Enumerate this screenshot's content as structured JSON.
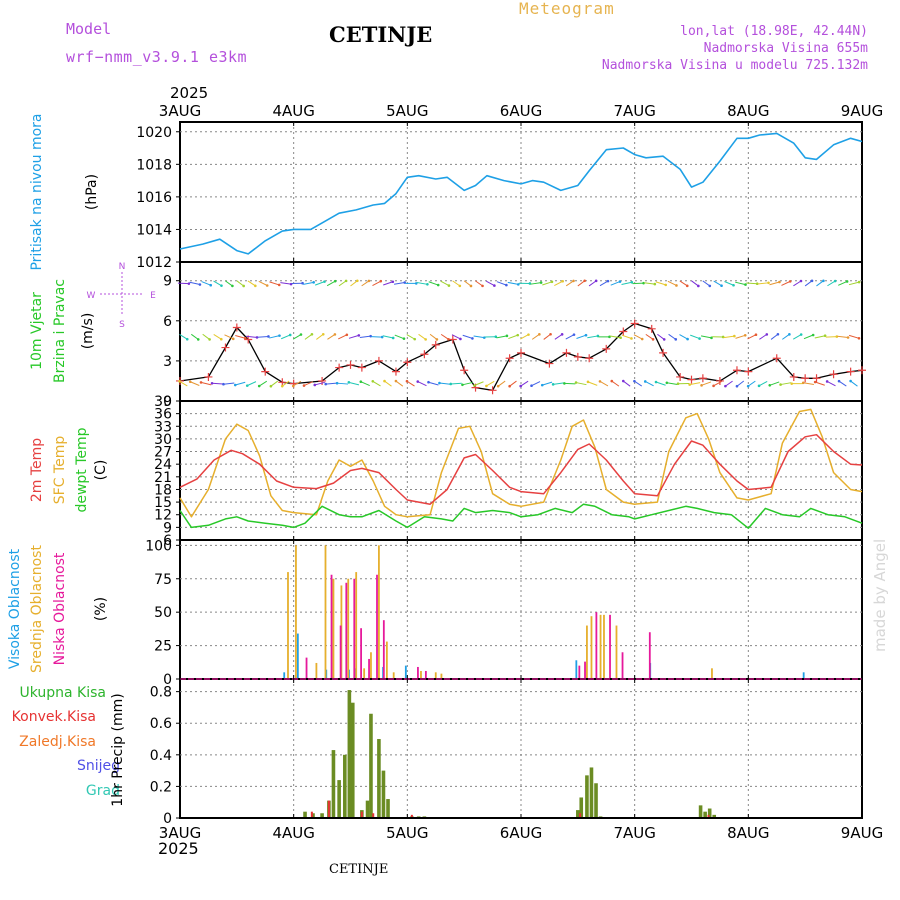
{
  "header": {
    "model_label": "Model",
    "model_name": "wrf−nmm_v3.9.1  e3km",
    "station": "CETINJE",
    "meteogram": "Meteogram",
    "coords": "lon,lat (18.98E, 42.44N)",
    "altitude": "Nadmorska Visina 655m",
    "model_altitude": "Nadmorska Visina u modelu 725.132m",
    "year_top": "2025",
    "year_bottom": "2025",
    "footer_station": "CETINJE",
    "watermark": "made by Angel"
  },
  "colors": {
    "pressure": "#1ea0e6",
    "temp2m": "#e64141",
    "sfc_temp": "#e6af2d",
    "dewpt": "#28c828",
    "high_cloud": "#1ea0e6",
    "mid_cloud": "#e6af2d",
    "low_cloud": "#e6199b",
    "total_rain": "#2db42d",
    "conv_rain": "#e63232",
    "freezing_rain": "#f07828",
    "snow": "#5050e6",
    "hail": "#32c8b4",
    "precip_bar": "#6b8c23",
    "model_text": "#b450dc",
    "meteogram_text": "#e6b450"
  },
  "chart_data": [
    {
      "type": "line",
      "id": "pressure",
      "title": "Pritisak na nivou mora",
      "ylabel": "(hPa)",
      "ylim": [
        1012,
        1020.6
      ],
      "yticks": [
        1012,
        1014,
        1016,
        1018,
        1020
      ],
      "xlim": [
        0,
        6
      ],
      "x_tick_labels": [
        "3AUG",
        "4AUG",
        "5AUG",
        "6AUG",
        "7AUG",
        "8AUG",
        "9AUG"
      ],
      "series": [
        {
          "name": "Pritisak na nivou mora",
          "x": [
            0,
            0.2,
            0.35,
            0.5,
            0.6,
            0.75,
            0.9,
            1.0,
            1.15,
            1.25,
            1.4,
            1.55,
            1.7,
            1.8,
            1.9,
            2.0,
            2.1,
            2.25,
            2.35,
            2.5,
            2.6,
            2.7,
            2.85,
            3.0,
            3.1,
            3.2,
            3.35,
            3.5,
            3.6,
            3.75,
            3.9,
            4.0,
            4.1,
            4.25,
            4.4,
            4.5,
            4.6,
            4.75,
            4.9,
            5.0,
            5.1,
            5.25,
            5.4,
            5.5,
            5.6,
            5.75,
            5.9,
            6.0
          ],
          "values": [
            1012.8,
            1013.1,
            1013.4,
            1012.7,
            1012.5,
            1013.3,
            1013.9,
            1014.0,
            1014.0,
            1014.4,
            1015.0,
            1015.2,
            1015.5,
            1015.6,
            1016.2,
            1017.2,
            1017.3,
            1017.1,
            1017.2,
            1016.4,
            1016.7,
            1017.3,
            1017.0,
            1016.8,
            1017.0,
            1016.9,
            1016.4,
            1016.7,
            1017.6,
            1018.9,
            1019.0,
            1018.6,
            1018.4,
            1018.5,
            1017.7,
            1016.6,
            1016.9,
            1018.2,
            1019.6,
            1019.6,
            1019.8,
            1019.9,
            1019.3,
            1018.4,
            1018.3,
            1019.2,
            1019.6,
            1019.4
          ]
        }
      ]
    },
    {
      "type": "line",
      "id": "wind",
      "title": "10m Vjetar Brzina i Pravac",
      "ylabel": "(m/s)",
      "ylim": [
        0,
        10.4
      ],
      "yticks": [
        0,
        3,
        6,
        9
      ],
      "compass": [
        "N",
        "W",
        "E",
        "S"
      ],
      "series": [
        {
          "name": "Brzina vjetra",
          "x": [
            0,
            0.25,
            0.4,
            0.5,
            0.6,
            0.75,
            0.9,
            1.0,
            1.25,
            1.4,
            1.5,
            1.6,
            1.75,
            1.9,
            2.0,
            2.15,
            2.25,
            2.4,
            2.5,
            2.6,
            2.75,
            2.9,
            3.0,
            3.25,
            3.4,
            3.5,
            3.6,
            3.75,
            3.9,
            4.0,
            4.15,
            4.25,
            4.4,
            4.5,
            4.6,
            4.75,
            4.9,
            5.0,
            5.25,
            5.4,
            5.5,
            5.6,
            5.75,
            5.9,
            6.0
          ],
          "values": [
            1.5,
            1.8,
            4.0,
            5.5,
            4.6,
            2.2,
            1.4,
            1.3,
            1.5,
            2.5,
            2.7,
            2.5,
            3.0,
            2.2,
            2.9,
            3.5,
            4.2,
            4.6,
            2.3,
            1.0,
            0.8,
            3.2,
            3.6,
            2.8,
            3.6,
            3.3,
            3.2,
            3.9,
            5.2,
            5.8,
            5.4,
            3.6,
            1.8,
            1.6,
            1.7,
            1.5,
            2.3,
            2.2,
            3.2,
            1.8,
            1.7,
            1.7,
            2.0,
            2.2,
            2.3
          ]
        }
      ],
      "arrow_rows_ms": [
        8.8,
        4.8,
        1.3
      ]
    },
    {
      "type": "line",
      "id": "temperature",
      "title": "2m Temp / SFC Temp / dewpt Temp",
      "ylabel": "(C)",
      "ylim": [
        6,
        39
      ],
      "yticks": [
        6,
        9,
        12,
        15,
        18,
        21,
        24,
        27,
        30,
        33,
        36,
        39
      ],
      "series": [
        {
          "name": "2m Temp",
          "x": [
            0,
            0.15,
            0.3,
            0.45,
            0.55,
            0.7,
            0.85,
            1.0,
            1.2,
            1.35,
            1.5,
            1.6,
            1.75,
            1.9,
            2.0,
            2.2,
            2.35,
            2.5,
            2.6,
            2.75,
            2.9,
            3.0,
            3.2,
            3.35,
            3.5,
            3.6,
            3.75,
            3.9,
            4.0,
            4.2,
            4.35,
            4.5,
            4.6,
            4.75,
            4.9,
            5.0,
            5.2,
            5.35,
            5.5,
            5.6,
            5.75,
            5.9,
            6.0
          ],
          "values": [
            18.5,
            20.5,
            25.0,
            27.3,
            26.5,
            24.0,
            20.0,
            18.5,
            18.2,
            19.5,
            22.5,
            23.0,
            22.0,
            18.0,
            15.5,
            14.5,
            18.0,
            25.5,
            26.3,
            22.5,
            18.5,
            17.5,
            17.0,
            22.0,
            27.5,
            28.8,
            25.0,
            20.0,
            17.0,
            16.5,
            24.0,
            29.5,
            28.5,
            24.0,
            20.0,
            18.0,
            18.5,
            27.0,
            30.5,
            31.0,
            27.0,
            24.0,
            23.8
          ]
        },
        {
          "name": "SFC Temp",
          "x": [
            0,
            0.1,
            0.25,
            0.4,
            0.5,
            0.6,
            0.7,
            0.8,
            0.9,
            1.0,
            1.2,
            1.3,
            1.4,
            1.5,
            1.6,
            1.7,
            1.8,
            1.9,
            2.0,
            2.2,
            2.3,
            2.45,
            2.55,
            2.65,
            2.75,
            2.9,
            3.0,
            3.2,
            3.35,
            3.45,
            3.55,
            3.65,
            3.75,
            3.9,
            4.0,
            4.2,
            4.3,
            4.45,
            4.55,
            4.65,
            4.75,
            4.9,
            5.0,
            5.2,
            5.3,
            5.45,
            5.55,
            5.65,
            5.75,
            5.9,
            6.0
          ],
          "values": [
            16.0,
            11.5,
            18.0,
            30.0,
            33.5,
            32.0,
            26.0,
            16.5,
            13.0,
            12.5,
            12.0,
            20.0,
            25.0,
            23.5,
            25.0,
            20.0,
            14.0,
            12.0,
            11.5,
            12.0,
            22.0,
            32.5,
            33.0,
            27.0,
            17.0,
            14.5,
            14.0,
            15.0,
            25.0,
            33.0,
            34.5,
            28.0,
            18.0,
            15.0,
            14.5,
            15.0,
            27.0,
            35.0,
            36.0,
            30.0,
            22.0,
            16.0,
            15.5,
            17.0,
            29.0,
            36.5,
            37.0,
            30.5,
            22.0,
            18.0,
            17.5
          ]
        },
        {
          "name": "dewpt Temp",
          "x": [
            0,
            0.1,
            0.25,
            0.4,
            0.5,
            0.6,
            0.75,
            0.9,
            1.0,
            1.1,
            1.25,
            1.4,
            1.5,
            1.6,
            1.75,
            1.9,
            2.0,
            2.15,
            2.3,
            2.4,
            2.5,
            2.6,
            2.75,
            2.9,
            3.0,
            3.15,
            3.3,
            3.45,
            3.55,
            3.65,
            3.8,
            3.95,
            4.0,
            4.15,
            4.3,
            4.45,
            4.55,
            4.7,
            4.85,
            5.0,
            5.15,
            5.3,
            5.45,
            5.55,
            5.7,
            5.85,
            6.0
          ],
          "values": [
            13.0,
            9.0,
            9.5,
            11.0,
            11.5,
            10.5,
            10.0,
            9.5,
            9.0,
            10.0,
            14.0,
            12.0,
            11.5,
            11.5,
            13.0,
            10.5,
            9.0,
            11.5,
            11.0,
            10.5,
            13.5,
            12.5,
            13.0,
            12.5,
            11.5,
            12.0,
            13.5,
            12.5,
            14.5,
            14.0,
            12.0,
            11.5,
            11.0,
            12.0,
            13.0,
            14.0,
            13.5,
            12.5,
            12.0,
            8.8,
            13.5,
            12.0,
            11.5,
            13.5,
            12.0,
            11.5,
            10.0
          ]
        }
      ]
    },
    {
      "type": "bar",
      "id": "clouds",
      "title": "Visoka Oblacnost / Srednja Oblacnost / Niska Oblacnost",
      "ylabel": "(%)",
      "ylim": [
        0,
        104
      ],
      "yticks": [
        0,
        25,
        50,
        75,
        100
      ],
      "series": [
        {
          "name": "Visoka Oblacnost",
          "x": [
            0.55,
            0.93,
            1.05,
            1.3,
            1.5,
            1.55,
            1.8,
            2.0,
            3.5,
            4.0,
            4.15,
            4.9,
            5.5,
            5.65
          ],
          "values": [
            0,
            5,
            34,
            7,
            7,
            8,
            9,
            10,
            14,
            0,
            12,
            0,
            5,
            0
          ]
        },
        {
          "name": "Srednja Oblacnost",
          "x": [
            0.95,
            1.02,
            1.2,
            1.28,
            1.35,
            1.42,
            1.48,
            1.55,
            1.62,
            1.68,
            1.75,
            1.82,
            1.88,
            2.12,
            2.25,
            2.3,
            3.58,
            3.62,
            3.7,
            3.73,
            3.84,
            4.68
          ],
          "values": [
            80,
            100,
            12,
            100,
            75,
            70,
            75,
            80,
            8,
            20,
            100,
            28,
            5,
            6,
            5,
            4,
            40,
            47,
            48,
            48,
            40,
            8
          ]
        },
        {
          "name": "Niska Oblacnost",
          "x": [
            1.1,
            1.32,
            1.4,
            1.45,
            1.52,
            1.58,
            1.65,
            1.72,
            1.78,
            2.08,
            2.15,
            3.5,
            3.55,
            3.65,
            3.77,
            3.88,
            4.12
          ],
          "values": [
            16,
            78,
            40,
            72,
            75,
            38,
            15,
            78,
            44,
            9,
            6,
            10,
            13,
            50,
            48,
            20,
            35
          ]
        }
      ]
    },
    {
      "type": "bar",
      "id": "precip",
      "title": "Ukupna Kisa / Konvek.Kisa / Zaledj.Kisa / Snijeg / Grad",
      "ylabel": "1hr Precip (mm)",
      "ylim": [
        0,
        0.88
      ],
      "yticks": [
        0,
        0.2,
        0.4,
        0.6,
        0.8
      ],
      "series": [
        {
          "name": "Ukupna Kisa",
          "x": [
            1.1,
            1.17,
            1.25,
            1.31,
            1.35,
            1.4,
            1.45,
            1.49,
            1.52,
            1.6,
            1.65,
            1.68,
            1.75,
            1.79,
            1.83,
            2.04,
            2.1,
            2.15,
            3.5,
            3.53,
            3.58,
            3.62,
            3.66,
            3.7,
            4.58,
            4.62,
            4.66,
            4.7
          ],
          "values": [
            0.04,
            0.03,
            0.03,
            0.11,
            0.43,
            0.24,
            0.4,
            0.81,
            0.73,
            0.05,
            0.11,
            0.66,
            0.5,
            0.3,
            0.12,
            0.01,
            0.01,
            0.01,
            0.05,
            0.13,
            0.27,
            0.32,
            0.22,
            0.01,
            0.08,
            0.04,
            0.06,
            0.02
          ]
        },
        {
          "name": "Konvek.Kisa",
          "x": [
            1.16,
            1.31,
            1.6,
            1.7,
            2.04,
            3.52,
            4.65
          ],
          "values": [
            0.04,
            0.11,
            0.04,
            0.03,
            0.02,
            0.03,
            0.02
          ]
        }
      ]
    }
  ]
}
